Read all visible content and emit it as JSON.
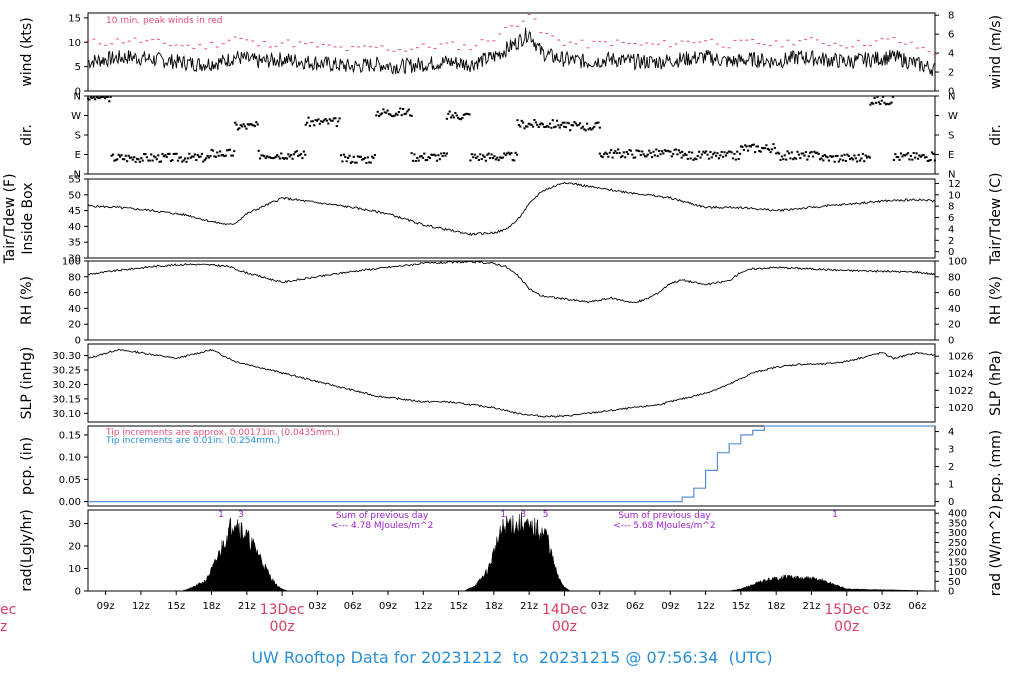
{
  "footer": {
    "text_prefix": "UW Rooftop Data for",
    "start": "20231212",
    "to_word": "to",
    "end": "20231215",
    "at_word": "@",
    "time": "07:56:34",
    "tz": "(UTC)"
  },
  "time_axis": {
    "start_hour": 7.5,
    "end_hour": 79.5,
    "hour_tick_labels": [
      "09z",
      "12z",
      "15z",
      "18z",
      "21z",
      "03z",
      "06z",
      "09z",
      "12z",
      "15z",
      "18z",
      "21z",
      "03z",
      "06z",
      "09z",
      "12z",
      "15z",
      "18z",
      "21z",
      "03z",
      "06z"
    ],
    "hour_tick_hours": [
      9,
      12,
      15,
      18,
      21,
      27,
      30,
      33,
      36,
      39,
      42,
      45,
      51,
      54,
      57,
      60,
      63,
      66,
      69,
      75,
      78
    ],
    "day_labels": [
      {
        "day": "13Dec",
        "time": "00z",
        "hour": 24
      },
      {
        "day": "14Dec",
        "time": "00z",
        "hour": 48
      },
      {
        "day": "15Dec",
        "time": "00z",
        "hour": 72
      }
    ],
    "left_cut_label": {
      "day": "ec",
      "time": "z"
    }
  },
  "chart_data": [
    {
      "type": "line",
      "panel": "wind",
      "ylabel_left": "wind (kts)",
      "ylabel_right": "wind (m/s)",
      "ylim": [
        0,
        16
      ],
      "yticks_left": [
        0,
        5,
        10,
        15
      ],
      "yticks_right": [
        0,
        2,
        4,
        6,
        8
      ],
      "annotation": "10 min. peak winds in red",
      "colors": {
        "mean": "#000000",
        "peak": "#e8507a"
      },
      "series": [
        {
          "name": "wind speed",
          "x": [
            7.5,
            9,
            11,
            13,
            15,
            17,
            19,
            20,
            22,
            24,
            26,
            28,
            30,
            32,
            34,
            36,
            38,
            40,
            42,
            44,
            45,
            46,
            47,
            48,
            50,
            52,
            54,
            56,
            58,
            60,
            62,
            64,
            66,
            68,
            70,
            72,
            74,
            76,
            78,
            79.5
          ],
          "y": [
            6,
            6.5,
            7,
            6.5,
            6,
            5.5,
            6,
            7,
            6,
            6.5,
            6,
            5.5,
            5,
            5.5,
            5,
            5.5,
            6,
            5.5,
            7,
            10,
            12,
            8,
            7,
            6.5,
            6,
            6.5,
            6,
            6,
            6.5,
            7,
            6,
            6.5,
            6,
            7,
            6.5,
            6,
            6.5,
            7,
            5.5,
            4.5
          ]
        },
        {
          "name": "peak gust",
          "x": [
            7.5,
            9,
            11,
            13,
            15,
            17,
            19,
            20,
            22,
            24,
            26,
            28,
            30,
            32,
            34,
            36,
            38,
            40,
            42,
            44,
            45,
            46,
            47,
            48,
            50,
            52,
            54,
            56,
            58,
            60,
            62,
            64,
            66,
            68,
            70,
            72,
            74,
            76,
            78,
            79.5
          ],
          "y": [
            10,
            10,
            10.5,
            10,
            9.5,
            9,
            10,
            11,
            9.5,
            10,
            9.5,
            9,
            8.5,
            9,
            8.5,
            9,
            9.5,
            9,
            11,
            14,
            16,
            12,
            11,
            10,
            9.5,
            10,
            9.5,
            9.5,
            10,
            10.5,
            9.5,
            10,
            9.5,
            10.5,
            10,
            9.5,
            10,
            10.5,
            9,
            8
          ]
        }
      ]
    },
    {
      "type": "scatter",
      "panel": "dir",
      "ylabel_left": "dir.",
      "ylabel_right": "dir.",
      "ytick_labels": [
        "N",
        "E",
        "S",
        "W",
        "N"
      ],
      "ytick_degrees": [
        0,
        90,
        180,
        270,
        360
      ],
      "ylim": [
        0,
        360
      ],
      "segments": [
        {
          "x0": 7.5,
          "x1": 9.5,
          "deg": 355
        },
        {
          "x0": 9.5,
          "x1": 18,
          "deg": 75
        },
        {
          "x0": 18,
          "x1": 20,
          "deg": 95
        },
        {
          "x0": 20,
          "x1": 22,
          "deg": 220
        },
        {
          "x0": 22,
          "x1": 26,
          "deg": 90
        },
        {
          "x0": 26,
          "x1": 29,
          "deg": 240
        },
        {
          "x0": 29,
          "x1": 32,
          "deg": 70
        },
        {
          "x0": 32,
          "x1": 35,
          "deg": 285
        },
        {
          "x0": 35,
          "x1": 38,
          "deg": 80
        },
        {
          "x0": 38,
          "x1": 40,
          "deg": 270
        },
        {
          "x0": 40,
          "x1": 44,
          "deg": 80
        },
        {
          "x0": 44,
          "x1": 48,
          "deg": 230
        },
        {
          "x0": 48,
          "x1": 51,
          "deg": 220
        },
        {
          "x0": 51,
          "x1": 58,
          "deg": 95
        },
        {
          "x0": 58,
          "x1": 63,
          "deg": 85
        },
        {
          "x0": 63,
          "x1": 66,
          "deg": 120
        },
        {
          "x0": 66,
          "x1": 70,
          "deg": 85
        },
        {
          "x0": 70,
          "x1": 74,
          "deg": 75
        },
        {
          "x0": 74,
          "x1": 76,
          "deg": 340
        },
        {
          "x0": 76,
          "x1": 79.5,
          "deg": 80
        }
      ]
    },
    {
      "type": "line",
      "panel": "temp",
      "ylabel_left": "Tair/Tdew (F)",
      "ylabel_left2": "Inside Box",
      "ylabel_right": "Tair/Tdew (C)",
      "ylim": [
        30,
        55
      ],
      "yticks_left": [
        30,
        35,
        40,
        45,
        50,
        55
      ],
      "yticks_right": [
        0,
        2,
        4,
        6,
        8,
        10,
        12
      ],
      "x": [
        7.5,
        10,
        13,
        16,
        18,
        19.5,
        20,
        21,
        24,
        27,
        30,
        33,
        36,
        38,
        40,
        42,
        43,
        44,
        45,
        46,
        48,
        51,
        54,
        57,
        60,
        63,
        66,
        69,
        72,
        75,
        78,
        79.5
      ],
      "y": [
        46.5,
        46,
        45,
        43.5,
        41.5,
        40.5,
        41,
        44,
        49,
        47.5,
        46,
        44,
        40.5,
        39,
        37.5,
        38,
        39,
        42,
        47,
        51,
        54,
        52,
        50.5,
        49,
        46,
        46,
        45,
        46,
        47,
        48,
        48.5,
        48
      ]
    },
    {
      "type": "line",
      "panel": "rh",
      "ylabel_left": "RH (%)",
      "ylabel_right": "RH (%)",
      "ylim": [
        0,
        100
      ],
      "yticks_left": [
        0,
        20,
        40,
        60,
        80,
        100
      ],
      "yticks_right": [
        0,
        20,
        40,
        60,
        80,
        100
      ],
      "x": [
        7.5,
        10,
        13,
        16,
        18,
        19.5,
        20,
        21,
        24,
        27,
        30,
        33,
        36,
        38,
        40,
        42,
        43,
        44,
        45,
        46,
        48,
        50,
        52,
        53,
        54,
        55,
        56,
        57,
        58,
        60,
        62,
        63,
        64,
        66,
        69,
        72,
        75,
        78,
        79.5
      ],
      "y": [
        83,
        88,
        93,
        96,
        95,
        93,
        90,
        85,
        73,
        80,
        87,
        92,
        97,
        98,
        99,
        97,
        93,
        82,
        65,
        56,
        52,
        48,
        53,
        50,
        47,
        52,
        60,
        72,
        76,
        70,
        75,
        86,
        90,
        92,
        90,
        88,
        87,
        86,
        83
      ]
    },
    {
      "type": "line",
      "panel": "slp",
      "ylabel_left": "SLP (inHg)",
      "ylabel_right": "SLP (hPa)",
      "ylim": [
        30.07,
        30.34
      ],
      "yticks_left": [
        30.1,
        30.15,
        30.2,
        30.25,
        30.3
      ],
      "ytick_labels_left": [
        "30.10",
        "30.15",
        "30.20",
        "30.25",
        "30.30"
      ],
      "yticks_right_hpa": [
        1020,
        1022,
        1024,
        1026
      ],
      "x": [
        7.5,
        10,
        12,
        15,
        18,
        20,
        22,
        24,
        26,
        28,
        30,
        32,
        34,
        36,
        38,
        40,
        42,
        44,
        46,
        48,
        50,
        52,
        54,
        56,
        58,
        60,
        62,
        64,
        66,
        68,
        70,
        72,
        74,
        75,
        76,
        78,
        79.5
      ],
      "y": [
        30.29,
        30.32,
        30.31,
        30.29,
        30.32,
        30.28,
        30.26,
        30.24,
        30.22,
        30.2,
        30.18,
        30.16,
        30.15,
        30.14,
        30.14,
        30.13,
        30.12,
        30.1,
        30.09,
        30.09,
        30.1,
        30.11,
        30.12,
        30.13,
        30.15,
        30.17,
        30.2,
        30.24,
        30.26,
        30.27,
        30.27,
        30.28,
        30.3,
        30.31,
        30.29,
        30.31,
        30.3
      ],
      "hpa_per_inhg": 33.8639
    },
    {
      "type": "line",
      "panel": "pcp",
      "ylabel_left": "pcp. (in)",
      "ylabel_right": "pcp. (mm)",
      "ylim": [
        -0.01,
        0.17
      ],
      "yticks_left": [
        0.0,
        0.05,
        0.1,
        0.15
      ],
      "ytick_labels_left": [
        "0.00",
        "0.05",
        "0.10",
        "0.15"
      ],
      "yticks_right": [
        0,
        1,
        2,
        3,
        4
      ],
      "notes": [
        {
          "text": "Tip increments are approx. 0.00171in. (0.0435mm.)",
          "color": "#e8507a"
        },
        {
          "text": "Tip increments are 0.01in. (0.254mm.)",
          "color": "#2a8fd8"
        }
      ],
      "color": "#5b8fd0",
      "x": [
        7.5,
        56,
        57,
        58,
        59,
        60,
        61,
        62,
        63,
        64,
        65,
        66,
        67,
        79.5
      ],
      "y": [
        0,
        0,
        0,
        0.01,
        0.03,
        0.07,
        0.11,
        0.13,
        0.15,
        0.16,
        0.17,
        0.17,
        0.17,
        0.17
      ]
    },
    {
      "type": "area",
      "panel": "rad",
      "ylabel_left": "rad(Lgly/hr)",
      "ylabel_right": "rad (W/m^2)",
      "ylim": [
        0,
        36
      ],
      "yticks_left": [
        0,
        10,
        20,
        30
      ],
      "yticks_right": [
        0,
        50,
        100,
        150,
        200,
        250,
        300,
        350,
        400
      ],
      "annotations": [
        {
          "text": "Sum of previous day",
          "hour": 32.5,
          "line": 1
        },
        {
          "text": "<--- 4.78 MJoules/m^2",
          "hour": 32.5,
          "line": 2
        },
        {
          "text": "Sum of previous day",
          "hour": 56.5,
          "line": 1
        },
        {
          "text": "<--- 5.68 MJoules/m^2",
          "hour": 56.5,
          "line": 2
        }
      ],
      "top_markers": [
        {
          "text": "1",
          "hour": 18.8
        },
        {
          "text": "3",
          "hour": 20.5
        },
        {
          "text": "1",
          "hour": 42.8
        },
        {
          "text": "3",
          "hour": 44.5
        },
        {
          "text": "5",
          "hour": 46.4
        },
        {
          "text": "1",
          "hour": 71
        }
      ],
      "annotation_color": "#a020d0",
      "x": [
        7.5,
        15.5,
        16.5,
        17.5,
        18.2,
        18.8,
        19.5,
        20,
        20.5,
        21,
        21.5,
        22,
        22.5,
        23,
        23.5,
        24,
        24.5,
        33,
        39.5,
        40.5,
        41.5,
        42.2,
        42.8,
        43.5,
        44,
        44.5,
        45,
        45.5,
        46,
        46.5,
        47,
        47.5,
        48,
        48.5,
        62,
        63,
        64,
        65,
        66,
        67,
        68,
        69,
        70,
        71,
        72,
        79.5
      ],
      "y": [
        0,
        0,
        2,
        5,
        12,
        20,
        29,
        35,
        30,
        26,
        22,
        18,
        12,
        7,
        3,
        1,
        0,
        0,
        0,
        3,
        10,
        22,
        30,
        33,
        31,
        33,
        29,
        30,
        28,
        27,
        15,
        6,
        2,
        0,
        0,
        1,
        3,
        5,
        6,
        7,
        6,
        6,
        5,
        3,
        1,
        0
      ]
    }
  ]
}
